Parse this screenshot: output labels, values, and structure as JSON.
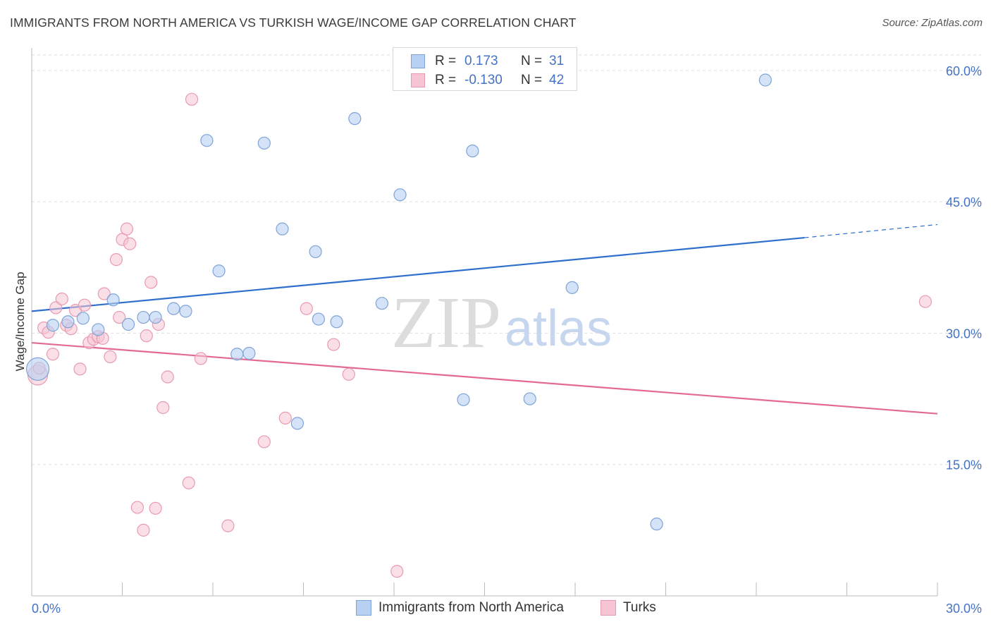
{
  "title": "IMMIGRANTS FROM NORTH AMERICA VS TURKISH WAGE/INCOME GAP CORRELATION CHART",
  "source": "Source: ZipAtlas.com",
  "watermark": {
    "zip": "ZIP",
    "atlas": "atlas"
  },
  "colors": {
    "blue_fill": "#b8d0f2",
    "blue_stroke": "#7fa3d8",
    "blue_line": "#2f6fcc",
    "pink_fill": "#f7c4d4",
    "pink_stroke": "#e89ab3",
    "pink_line": "#e36a93",
    "tick_text": "#4472c4",
    "grid": "#dddddd"
  },
  "legend_top": {
    "rows": [
      {
        "r_label": "R =",
        "r_value": "0.173",
        "n_label": "N =",
        "n_value": "31"
      },
      {
        "r_label": "R =",
        "r_value": "-0.130",
        "n_label": "N =",
        "n_value": "42"
      }
    ]
  },
  "legend_bottom": [
    "Immigrants from North America",
    "Turks"
  ],
  "chart_data": {
    "type": "scatter",
    "title": "IMMIGRANTS FROM NORTH AMERICA VS TURKISH WAGE/INCOME GAP CORRELATION CHART",
    "xlabel": "",
    "ylabel": "Wage/Income Gap",
    "xlim": [
      0,
      30
    ],
    "ylim": [
      0,
      62
    ],
    "x_tick_labels": [
      "0.0%",
      "30.0%"
    ],
    "y_ticks": [
      15,
      30,
      45,
      60
    ],
    "y_tick_labels": [
      "15.0%",
      "30.0%",
      "45.0%",
      "60.0%"
    ],
    "grid": true,
    "legend_position": "top-center",
    "series": [
      {
        "name": "Immigrants from North America",
        "r": 0.173,
        "n": 31,
        "trend": {
          "x0": 0,
          "y0": 32.5,
          "x1": 25.6,
          "y1": 40.9,
          "dashed_to_x": 30,
          "dashed_to_y": 42.4
        },
        "points": [
          {
            "x": 0.2,
            "y": 25.9,
            "big": true
          },
          {
            "x": 0.7,
            "y": 30.9
          },
          {
            "x": 1.2,
            "y": 31.3
          },
          {
            "x": 1.7,
            "y": 31.7
          },
          {
            "x": 2.2,
            "y": 30.4
          },
          {
            "x": 2.7,
            "y": 33.8
          },
          {
            "x": 3.2,
            "y": 31.0
          },
          {
            "x": 3.7,
            "y": 31.8
          },
          {
            "x": 4.1,
            "y": 31.8
          },
          {
            "x": 4.7,
            "y": 32.8
          },
          {
            "x": 5.1,
            "y": 32.5
          },
          {
            "x": 5.8,
            "y": 52.0
          },
          {
            "x": 6.2,
            "y": 37.1
          },
          {
            "x": 6.8,
            "y": 27.6
          },
          {
            "x": 7.2,
            "y": 27.7
          },
          {
            "x": 7.7,
            "y": 51.7
          },
          {
            "x": 8.3,
            "y": 41.9
          },
          {
            "x": 8.8,
            "y": 19.7
          },
          {
            "x": 9.4,
            "y": 39.3
          },
          {
            "x": 9.5,
            "y": 31.6
          },
          {
            "x": 10.1,
            "y": 31.3
          },
          {
            "x": 10.7,
            "y": 54.5
          },
          {
            "x": 11.6,
            "y": 33.4
          },
          {
            "x": 12.2,
            "y": 45.8
          },
          {
            "x": 12.8,
            "y": 58.8
          },
          {
            "x": 14.3,
            "y": 22.4
          },
          {
            "x": 14.6,
            "y": 50.8
          },
          {
            "x": 16.5,
            "y": 22.5
          },
          {
            "x": 17.9,
            "y": 35.2
          },
          {
            "x": 20.7,
            "y": 8.2
          },
          {
            "x": 24.3,
            "y": 58.9
          }
        ]
      },
      {
        "name": "Turks",
        "r": -0.13,
        "n": 42,
        "trend": {
          "x0": 0,
          "y0": 28.9,
          "x1": 30,
          "y1": 20.8
        },
        "points": [
          {
            "x": 0.2,
            "y": 25.2,
            "big": true
          },
          {
            "x": 0.25,
            "y": 26.0
          },
          {
            "x": 0.4,
            "y": 30.6
          },
          {
            "x": 0.55,
            "y": 30.1
          },
          {
            "x": 0.7,
            "y": 27.6
          },
          {
            "x": 0.8,
            "y": 32.9
          },
          {
            "x": 1.0,
            "y": 33.9
          },
          {
            "x": 1.15,
            "y": 30.9
          },
          {
            "x": 1.3,
            "y": 30.5
          },
          {
            "x": 1.45,
            "y": 32.6
          },
          {
            "x": 1.6,
            "y": 25.9
          },
          {
            "x": 1.75,
            "y": 33.2
          },
          {
            "x": 1.9,
            "y": 28.9
          },
          {
            "x": 2.05,
            "y": 29.3
          },
          {
            "x": 2.2,
            "y": 29.6
          },
          {
            "x": 2.35,
            "y": 29.4
          },
          {
            "x": 2.4,
            "y": 34.5
          },
          {
            "x": 2.6,
            "y": 27.3
          },
          {
            "x": 2.8,
            "y": 38.4
          },
          {
            "x": 2.9,
            "y": 31.8
          },
          {
            "x": 3.0,
            "y": 40.7
          },
          {
            "x": 3.15,
            "y": 41.9
          },
          {
            "x": 3.25,
            "y": 40.2
          },
          {
            "x": 3.5,
            "y": 10.1
          },
          {
            "x": 3.7,
            "y": 7.5
          },
          {
            "x": 3.8,
            "y": 29.7
          },
          {
            "x": 3.95,
            "y": 35.8
          },
          {
            "x": 4.1,
            "y": 10.0
          },
          {
            "x": 4.2,
            "y": 31.0
          },
          {
            "x": 4.35,
            "y": 21.5
          },
          {
            "x": 4.5,
            "y": 25.0
          },
          {
            "x": 5.2,
            "y": 12.9
          },
          {
            "x": 5.3,
            "y": 56.7
          },
          {
            "x": 5.6,
            "y": 27.1
          },
          {
            "x": 6.5,
            "y": 8.0
          },
          {
            "x": 7.7,
            "y": 17.6
          },
          {
            "x": 8.4,
            "y": 20.3
          },
          {
            "x": 9.1,
            "y": 32.8
          },
          {
            "x": 10.0,
            "y": 28.7
          },
          {
            "x": 10.5,
            "y": 25.3
          },
          {
            "x": 12.1,
            "y": 2.8
          },
          {
            "x": 29.6,
            "y": 33.6
          }
        ]
      }
    ]
  }
}
